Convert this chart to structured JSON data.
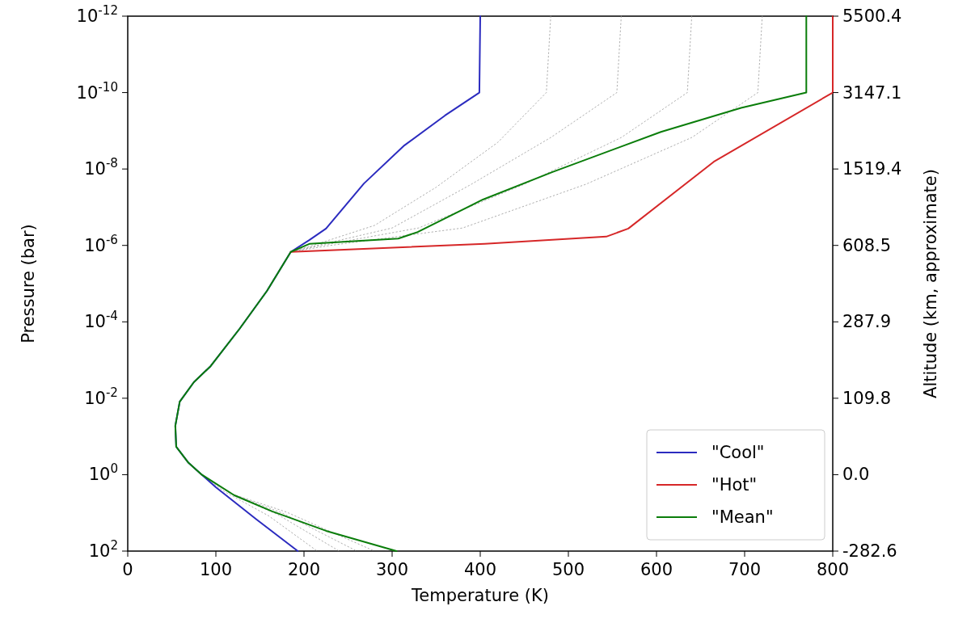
{
  "chart_data": {
    "type": "line",
    "xlabel": "Temperature (K)",
    "ylabel": "Pressure (bar)",
    "y2label": "Altitude (km, approximate)",
    "xlim": [
      0,
      800
    ],
    "xticks": [
      0,
      100,
      200,
      300,
      400,
      500,
      600,
      700,
      800
    ],
    "ylim": [
      100,
      1e-12
    ],
    "yticks": [
      {
        "value": 1e-12,
        "label": "10$^{-12}$"
      },
      {
        "value": 1e-10,
        "label": "10$^{-10}$"
      },
      {
        "value": 1e-08,
        "label": "10$^{-8}$"
      },
      {
        "value": 1e-06,
        "label": "10$^{-6}$"
      },
      {
        "value": 0.0001,
        "label": "10$^{-4}$"
      },
      {
        "value": 0.01,
        "label": "10$^{-2}$"
      },
      {
        "value": 1,
        "label": "10$^{0}$"
      },
      {
        "value": 100,
        "label": "10$^{2}$"
      }
    ],
    "y2_categories": [
      "5500.4",
      "3147.1",
      "1519.4",
      "608.5",
      "287.9",
      "109.8",
      "0.0",
      "-282.6"
    ],
    "log": "y",
    "grid": false,
    "legend": "bottom right",
    "series": [
      {
        "color": "#999999",
        "line_style": "dotted",
        "x": [
          480,
          475,
          420,
          350,
          280,
          210,
          185,
          158,
          127,
          94,
          75,
          59,
          54,
          55,
          69,
          84,
          110,
          160,
          215
        ],
        "values": [
          1e-12,
          1e-10,
          2e-09,
          3e-08,
          3e-07,
          1e-06,
          1.48e-06,
          1.55e-05,
          0.000151,
          0.00145,
          0.0038,
          0.0123,
          0.0525,
          0.186,
          0.49,
          1,
          2.8,
          12,
          100
        ]
      },
      {
        "color": "#999999",
        "line_style": "dotted",
        "x": [
          560,
          555,
          480,
          390,
          300,
          215,
          185,
          158,
          127,
          94,
          75,
          59,
          54,
          55,
          69,
          84,
          115,
          170,
          240
        ],
        "values": [
          1e-12,
          1e-10,
          1.5e-09,
          2.5e-08,
          3.5e-07,
          1e-06,
          1.48e-06,
          1.55e-05,
          0.000151,
          0.00145,
          0.0038,
          0.0123,
          0.0525,
          0.186,
          0.49,
          1,
          3,
          11,
          100
        ]
      },
      {
        "color": "#999999",
        "line_style": "dotted",
        "x": [
          640,
          635,
          560,
          450,
          330,
          220,
          185,
          158,
          127,
          94,
          75,
          59,
          54,
          55,
          69,
          84,
          118,
          175,
          260
        ],
        "values": [
          1e-12,
          1e-10,
          1.5e-09,
          2.5e-08,
          3.5e-07,
          1e-06,
          1.48e-06,
          1.55e-05,
          0.000151,
          0.00145,
          0.0038,
          0.0123,
          0.0525,
          0.186,
          0.49,
          1,
          3.2,
          10,
          100
        ]
      },
      {
        "color": "#999999",
        "line_style": "dotted",
        "x": [
          720,
          715,
          640,
          520,
          380,
          230,
          185,
          158,
          127,
          94,
          75,
          59,
          54,
          55,
          69,
          84,
          120,
          180,
          280
        ],
        "values": [
          1e-12,
          1e-10,
          1.5e-09,
          2.5e-08,
          3.5e-07,
          1e-06,
          1.48e-06,
          1.55e-05,
          0.000151,
          0.00145,
          0.0038,
          0.0123,
          0.0525,
          0.186,
          0.49,
          1,
          3.3,
          9.5,
          100
        ]
      },
      {
        "name": "\"Cool\"",
        "color": "#2b2bbf",
        "line_style": "solid",
        "x": [
          400,
          399,
          360,
          314,
          268,
          225,
          206,
          185,
          158,
          127,
          94,
          75,
          59,
          54,
          55,
          69,
          84,
          100,
          146,
          193
        ],
        "values": [
          1e-12,
          1e-10,
          3.98e-10,
          2.4e-09,
          2.4e-08,
          3.63e-07,
          7.24e-07,
          1.48e-06,
          1.55e-05,
          0.000151,
          0.00145,
          0.0038,
          0.0123,
          0.0525,
          0.186,
          0.49,
          1,
          2.14,
          14.8,
          100
        ]
      },
      {
        "name": "\"Hot\"",
        "color": "#d62728",
        "line_style": "solid",
        "x": [
          800,
          800,
          665,
          568,
          543,
          405,
          185
        ],
        "values": [
          1e-12,
          1e-10,
          6.46e-09,
          3.63e-07,
          5.89e-07,
          9.12e-07,
          1.48e-06
        ]
      },
      {
        "name": "\"Mean\"",
        "color": "#0a7d0a",
        "line_style": "solid",
        "x": [
          770,
          770,
          696,
          605,
          482,
          403,
          329,
          307,
          206,
          185,
          158,
          127,
          94,
          75,
          59,
          54,
          55,
          69,
          84,
          121,
          164,
          225,
          305
        ],
        "values": [
          1e-12,
          1e-10,
          2.51e-10,
          1.07e-09,
          1.2e-08,
          6.31e-08,
          4.47e-07,
          6.61e-07,
          9.12e-07,
          1.48e-06,
          1.55e-05,
          0.000151,
          0.00145,
          0.0038,
          0.0123,
          0.0525,
          0.186,
          0.49,
          1,
          3.47,
          9.12,
          29.5,
          100
        ]
      }
    ]
  }
}
